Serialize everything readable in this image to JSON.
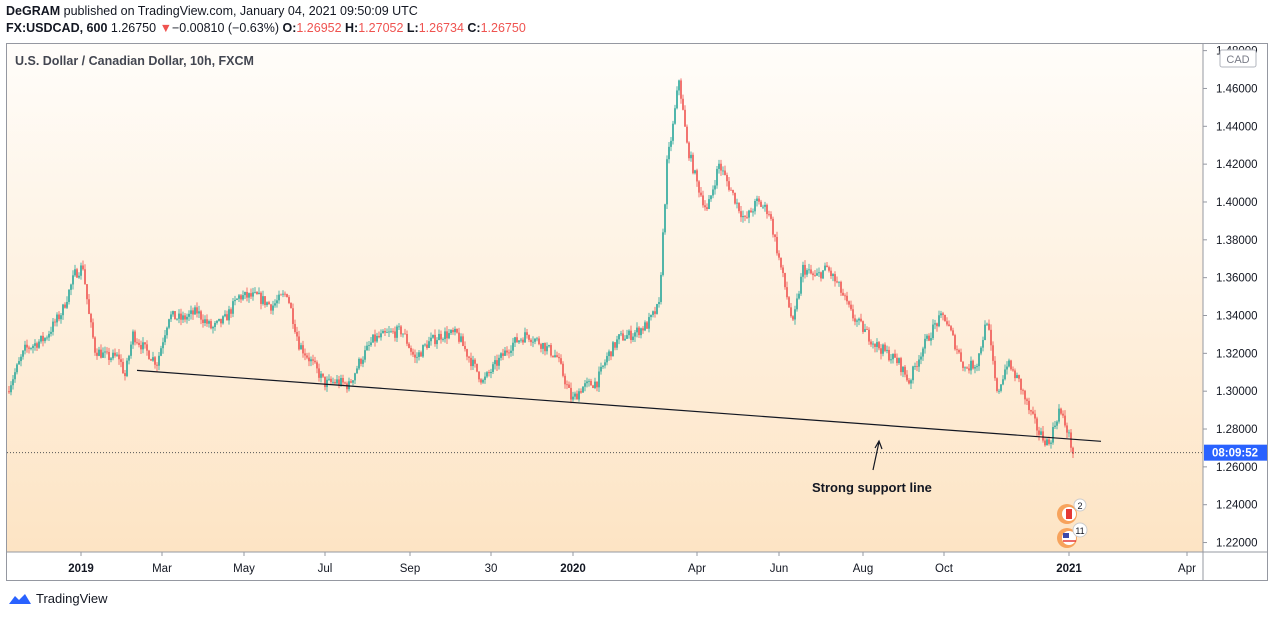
{
  "header": {
    "author": "DeGRAM",
    "published_text": "published on TradingView.com, January 04, 2021 09:50:09 UTC",
    "symbol": "FX:USDCAD, 600",
    "price": "1.26750",
    "change": "−0.00810 (−0.63%)",
    "o_label": "O:",
    "o_value": "1.26952",
    "h_label": "H:",
    "h_value": "1.27052",
    "l_label": "L:",
    "l_value": "1.26734",
    "c_label": "C:",
    "c_value": "1.26750"
  },
  "chart_data": {
    "type": "candlestick",
    "title": "U.S. Dollar / Canadian Dollar, 10h, FXCM",
    "currency_label": "CAD",
    "ylim": [
      1.215,
      1.4835
    ],
    "y_ticks": [
      "1.48000",
      "1.46000",
      "1.44000",
      "1.42000",
      "1.40000",
      "1.38000",
      "1.36000",
      "1.34000",
      "1.32000",
      "1.30000",
      "1.28000",
      "1.26000",
      "1.24000",
      "1.22000"
    ],
    "x_ticks": [
      "2019",
      "Mar",
      "May",
      "Jul",
      "Sep",
      "30",
      "2020",
      "Apr",
      "Jun",
      "Aug",
      "Oct",
      "2021",
      "Apr"
    ],
    "last_price_label": "08:09:52",
    "last_price": 1.2675,
    "key_points": [
      {
        "date": "Dec 2018",
        "price": 1.365
      },
      {
        "date": "Jan 2019",
        "price": 1.31
      },
      {
        "date": "Apr 2019",
        "price": 1.335
      },
      {
        "date": "Jul 2019",
        "price": 1.304
      },
      {
        "date": "Oct 2019",
        "price": 1.33
      },
      {
        "date": "Dec 2019",
        "price": 1.297
      },
      {
        "date": "Jan 2020",
        "price": 1.305
      },
      {
        "date": "Mar 2020",
        "price": 1.465
      },
      {
        "date": "May 2020",
        "price": 1.4
      },
      {
        "date": "Jun 2020",
        "price": 1.347
      },
      {
        "date": "Aug 2020",
        "price": 1.31
      },
      {
        "date": "Sep 2020",
        "price": 1.34
      },
      {
        "date": "Dec 2020",
        "price": 1.275
      },
      {
        "date": "Jan 2021",
        "price": 1.2675
      }
    ],
    "support_line": {
      "start_price": 1.311,
      "end_price": 1.2735
    },
    "annotation": "Strong support line",
    "up_color": "#26a69a",
    "down_color": "#ef5350"
  },
  "events": {
    "count_top": "2",
    "count_bottom": "11"
  },
  "footer": {
    "brand": "TradingView"
  }
}
